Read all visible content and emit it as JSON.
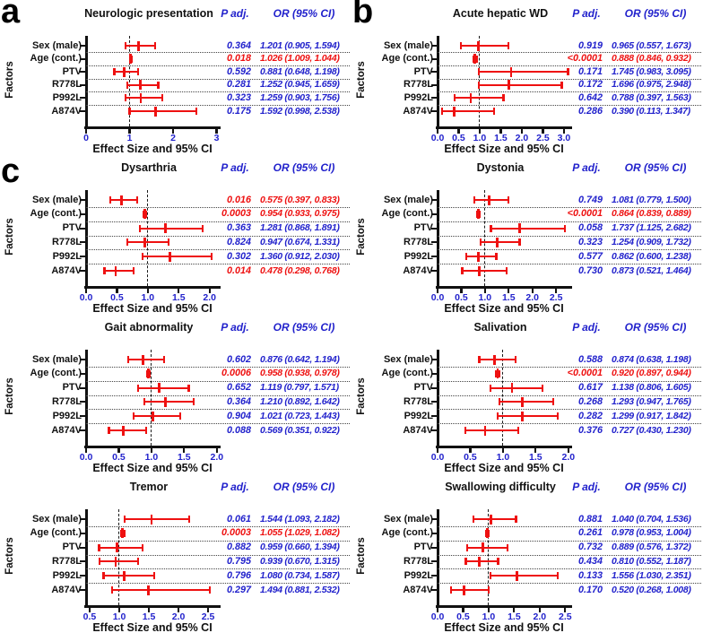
{
  "figure_labels": {
    "p_header": "P adj.",
    "or_header": "OR (95% CI)",
    "x_axis_label": "Effect Size and 95% CI",
    "y_axis_label": "Factors"
  },
  "colors": {
    "significant_red": "#ee1111",
    "text_blue": "#2222cc",
    "axis_black": "#111111"
  },
  "chart_data": [
    {
      "type": "forest",
      "panel_letter": "a",
      "title": "Neurologic presentation",
      "xlabel": "Effect Size and 95% CI",
      "ylabel": "Factors",
      "xlim": [
        0,
        3.05
      ],
      "ref_line": 1.0,
      "x_ticks": [
        0,
        1,
        2,
        3
      ],
      "x_tick_labels": [
        "0",
        "1",
        "2",
        "3"
      ],
      "rows": [
        {
          "factor": "Sex (male)",
          "p_adj": "0.364",
          "or": 1.201,
          "ci": [
            0.905,
            1.594
          ],
          "or_label": "1.201 (0.905, 1.594)",
          "significant": false
        },
        {
          "factor": "Age (cont.)",
          "p_adj": "0.018",
          "or": 1.026,
          "ci": [
            1.009,
            1.044
          ],
          "or_label": "1.026 (1.009, 1.044)",
          "significant": true
        },
        {
          "factor": "PTV",
          "p_adj": "0.592",
          "or": 0.881,
          "ci": [
            0.648,
            1.198
          ],
          "or_label": "0.881 (0.648, 1.198)",
          "significant": false
        },
        {
          "factor": "R778L",
          "p_adj": "0.281",
          "or": 1.252,
          "ci": [
            0.945,
            1.659
          ],
          "or_label": "1.252 (0.945, 1.659)",
          "significant": false
        },
        {
          "factor": "P992L",
          "p_adj": "0.323",
          "or": 1.259,
          "ci": [
            0.903,
            1.756
          ],
          "or_label": "1.259 (0.903, 1.756)",
          "significant": false
        },
        {
          "factor": "A874V",
          "p_adj": "0.175",
          "or": 1.592,
          "ci": [
            0.998,
            2.538
          ],
          "or_label": "1.592 (0.998, 2.538)",
          "significant": false
        }
      ]
    },
    {
      "type": "forest",
      "panel_letter": "b",
      "title": "Acute hepatic WD",
      "xlabel": "Effect Size and 95% CI",
      "ylabel": "Factors",
      "xlim": [
        0,
        3.15
      ],
      "ref_line": 1.0,
      "x_ticks": [
        0,
        0.5,
        1,
        1.5,
        2,
        2.5,
        3
      ],
      "x_tick_labels": [
        "0.0",
        "0.5",
        "1.0",
        "1.5",
        "2.0",
        "2.5",
        "3.0"
      ],
      "rows": [
        {
          "factor": "Sex (male)",
          "p_adj": "0.919",
          "or": 0.965,
          "ci": [
            0.557,
            1.673
          ],
          "or_label": "0.965 (0.557, 1.673)",
          "significant": false
        },
        {
          "factor": "Age (cont.)",
          "p_adj": "<0.0001",
          "or": 0.888,
          "ci": [
            0.846,
            0.932
          ],
          "or_label": "0.888 (0.846, 0.932)",
          "significant": true
        },
        {
          "factor": "PTV",
          "p_adj": "0.171",
          "or": 1.745,
          "ci": [
            0.983,
            3.095
          ],
          "or_label": "1.745 (0.983, 3.095)",
          "significant": false
        },
        {
          "factor": "R778L",
          "p_adj": "0.172",
          "or": 1.696,
          "ci": [
            0.975,
            2.948
          ],
          "or_label": "1.696 (0.975, 2.948)",
          "significant": false
        },
        {
          "factor": "P992L",
          "p_adj": "0.642",
          "or": 0.788,
          "ci": [
            0.397,
            1.563
          ],
          "or_label": "0.788 (0.397, 1.563)",
          "significant": false
        },
        {
          "factor": "A874V",
          "p_adj": "0.286",
          "or": 0.39,
          "ci": [
            0.113,
            1.347
          ],
          "or_label": "0.390 (0.113, 1.347)",
          "significant": false
        }
      ]
    },
    {
      "type": "forest",
      "panel_letter": "c",
      "title": "Dysarthria",
      "xlabel": "Effect Size and 95% CI",
      "ylabel": "Factors",
      "xlim": [
        0,
        2.15
      ],
      "ref_line": 1.0,
      "x_ticks": [
        0,
        0.5,
        1,
        1.5,
        2
      ],
      "x_tick_labels": [
        "0.0",
        "0.5",
        "1.0",
        "1.5",
        "2.0"
      ],
      "rows": [
        {
          "factor": "Sex (male)",
          "p_adj": "0.016",
          "or": 0.575,
          "ci": [
            0.397,
            0.833
          ],
          "or_label": "0.575 (0.397, 0.833)",
          "significant": true
        },
        {
          "factor": "Age (cont.)",
          "p_adj": "0.0003",
          "or": 0.954,
          "ci": [
            0.933,
            0.975
          ],
          "or_label": "0.954 (0.933, 0.975)",
          "significant": true
        },
        {
          "factor": "PTV",
          "p_adj": "0.363",
          "or": 1.281,
          "ci": [
            0.868,
            1.891
          ],
          "or_label": "1.281 (0.868, 1.891)",
          "significant": false
        },
        {
          "factor": "R778L",
          "p_adj": "0.824",
          "or": 0.947,
          "ci": [
            0.674,
            1.331
          ],
          "or_label": "0.947 (0.674, 1.331)",
          "significant": false
        },
        {
          "factor": "P992L",
          "p_adj": "0.302",
          "or": 1.36,
          "ci": [
            0.912,
            2.03
          ],
          "or_label": "1.360 (0.912, 2.030)",
          "significant": false
        },
        {
          "factor": "A874V",
          "p_adj": "0.014",
          "or": 0.478,
          "ci": [
            0.298,
            0.768
          ],
          "or_label": "0.478 (0.298, 0.768)",
          "significant": true
        }
      ]
    },
    {
      "type": "forest",
      "panel_letter": "",
      "title": "Dystonia",
      "xlabel": "Effect Size and 95% CI",
      "ylabel": "Factors",
      "xlim": [
        0,
        2.8
      ],
      "ref_line": 1.0,
      "x_ticks": [
        0,
        0.5,
        1,
        1.5,
        2,
        2.5
      ],
      "x_tick_labels": [
        "0.0",
        "0.5",
        "1.0",
        "1.5",
        "2.0",
        "2.5"
      ],
      "rows": [
        {
          "factor": "Sex (male)",
          "p_adj": "0.749",
          "or": 1.081,
          "ci": [
            0.779,
            1.5
          ],
          "or_label": "1.081 (0.779, 1.500)",
          "significant": false
        },
        {
          "factor": "Age (cont.)",
          "p_adj": "<0.0001",
          "or": 0.864,
          "ci": [
            0.839,
            0.889
          ],
          "or_label": "0.864 (0.839, 0.889)",
          "significant": true
        },
        {
          "factor": "PTV",
          "p_adj": "0.058",
          "or": 1.737,
          "ci": [
            1.125,
            2.682
          ],
          "or_label": "1.737 (1.125, 2.682)",
          "significant": false
        },
        {
          "factor": "R778L",
          "p_adj": "0.323",
          "or": 1.254,
          "ci": [
            0.909,
            1.732
          ],
          "or_label": "1.254 (0.909, 1.732)",
          "significant": false
        },
        {
          "factor": "P992L",
          "p_adj": "0.577",
          "or": 0.862,
          "ci": [
            0.6,
            1.238
          ],
          "or_label": "0.862 (0.600, 1.238)",
          "significant": false
        },
        {
          "factor": "A874V",
          "p_adj": "0.730",
          "or": 0.873,
          "ci": [
            0.521,
            1.464
          ],
          "or_label": "0.873 (0.521, 1.464)",
          "significant": false
        }
      ]
    },
    {
      "type": "forest",
      "panel_letter": "",
      "title": "Gait abnormality",
      "xlabel": "Effect Size and 95% CI",
      "ylabel": "Factors",
      "xlim": [
        0,
        2.03
      ],
      "ref_line": 1.0,
      "x_ticks": [
        0,
        0.5,
        1,
        1.5,
        2
      ],
      "x_tick_labels": [
        "0.0",
        "0.5",
        "1.0",
        "1.5",
        "2.0"
      ],
      "rows": [
        {
          "factor": "Sex (male)",
          "p_adj": "0.602",
          "or": 0.876,
          "ci": [
            0.642,
            1.194
          ],
          "or_label": "0.876 (0.642, 1.194)",
          "significant": false
        },
        {
          "factor": "Age (cont.)",
          "p_adj": "0.0006",
          "or": 0.958,
          "ci": [
            0.938,
            0.978
          ],
          "or_label": "0.958 (0.938, 0.978)",
          "significant": true
        },
        {
          "factor": "PTV",
          "p_adj": "0.652",
          "or": 1.119,
          "ci": [
            0.797,
            1.571
          ],
          "or_label": "1.119 (0.797, 1.571)",
          "significant": false
        },
        {
          "factor": "R778L",
          "p_adj": "0.364",
          "or": 1.21,
          "ci": [
            0.892,
            1.642
          ],
          "or_label": "1.210 (0.892, 1.642)",
          "significant": false
        },
        {
          "factor": "P992L",
          "p_adj": "0.904",
          "or": 1.021,
          "ci": [
            0.723,
            1.443
          ],
          "or_label": "1.021 (0.723, 1.443)",
          "significant": false
        },
        {
          "factor": "A874V",
          "p_adj": "0.088",
          "or": 0.569,
          "ci": [
            0.351,
            0.922
          ],
          "or_label": "0.569 (0.351, 0.922)",
          "significant": false
        }
      ]
    },
    {
      "type": "forest",
      "panel_letter": "",
      "title": "Salivation",
      "xlabel": "Effect Size and 95% CI",
      "ylabel": "Factors",
      "xlim": [
        0,
        2.03
      ],
      "ref_line": 1.0,
      "x_ticks": [
        0,
        0.5,
        1,
        1.5,
        2
      ],
      "x_tick_labels": [
        "0.0",
        "0.5",
        "1.0",
        "1.5",
        "2.0"
      ],
      "rows": [
        {
          "factor": "Sex (male)",
          "p_adj": "0.588",
          "or": 0.874,
          "ci": [
            0.638,
            1.198
          ],
          "or_label": "0.874 (0.638, 1.198)",
          "significant": false
        },
        {
          "factor": "Age (cont.)",
          "p_adj": "<0.0001",
          "or": 0.92,
          "ci": [
            0.897,
            0.944
          ],
          "or_label": "0.920 (0.897, 0.944)",
          "significant": true
        },
        {
          "factor": "PTV",
          "p_adj": "0.617",
          "or": 1.138,
          "ci": [
            0.806,
            1.605
          ],
          "or_label": "1.138 (0.806, 1.605)",
          "significant": false
        },
        {
          "factor": "R778L",
          "p_adj": "0.268",
          "or": 1.293,
          "ci": [
            0.947,
            1.765
          ],
          "or_label": "1.293 (0.947, 1.765)",
          "significant": false
        },
        {
          "factor": "P992L",
          "p_adj": "0.282",
          "or": 1.299,
          "ci": [
            0.917,
            1.842
          ],
          "or_label": "1.299 (0.917, 1.842)",
          "significant": false
        },
        {
          "factor": "A874V",
          "p_adj": "0.376",
          "or": 0.727,
          "ci": [
            0.43,
            1.23
          ],
          "or_label": "0.727 (0.430, 1.230)",
          "significant": false
        }
      ]
    },
    {
      "type": "forest",
      "panel_letter": "",
      "title": "Tremor",
      "xlabel": "Effect Size and 95% CI",
      "ylabel": "Factors",
      "xlim": [
        0.44,
        2.68
      ],
      "ref_line": 1.0,
      "x_ticks": [
        0.5,
        1,
        1.5,
        2,
        2.5
      ],
      "x_tick_labels": [
        "0.5",
        "1.0",
        "1.5",
        "2.0",
        "2.5"
      ],
      "rows": [
        {
          "factor": "Sex (male)",
          "p_adj": "0.061",
          "or": 1.544,
          "ci": [
            1.093,
            2.182
          ],
          "or_label": "1.544 (1.093, 2.182)",
          "significant": false
        },
        {
          "factor": "Age (cont.)",
          "p_adj": "0.0003",
          "or": 1.055,
          "ci": [
            1.029,
            1.082
          ],
          "or_label": "1.055 (1.029, 1.082)",
          "significant": true
        },
        {
          "factor": "PTV",
          "p_adj": "0.882",
          "or": 0.959,
          "ci": [
            0.66,
            1.394
          ],
          "or_label": "0.959 (0.660, 1.394)",
          "significant": false
        },
        {
          "factor": "R778L",
          "p_adj": "0.795",
          "or": 0.939,
          "ci": [
            0.67,
            1.315
          ],
          "or_label": "0.939 (0.670, 1.315)",
          "significant": false
        },
        {
          "factor": "P992L",
          "p_adj": "0.796",
          "or": 1.08,
          "ci": [
            0.734,
            1.587
          ],
          "or_label": "1.080 (0.734, 1.587)",
          "significant": false
        },
        {
          "factor": "A874V",
          "p_adj": "0.297",
          "or": 1.494,
          "ci": [
            0.881,
            2.532
          ],
          "or_label": "1.494 (0.881, 2.532)",
          "significant": false
        }
      ]
    },
    {
      "type": "forest",
      "panel_letter": "",
      "title": "Swallowing difficulty",
      "xlabel": "Effect Size and 95% CI",
      "ylabel": "Factors",
      "xlim": [
        0,
        2.6
      ],
      "ref_line": 1.0,
      "x_ticks": [
        0,
        0.5,
        1,
        1.5,
        2,
        2.5
      ],
      "x_tick_labels": [
        "0.0",
        "0.5",
        "1.0",
        "1.5",
        "2.0",
        "2.5"
      ],
      "rows": [
        {
          "factor": "Sex (male)",
          "p_adj": "0.881",
          "or": 1.04,
          "ci": [
            0.704,
            1.536
          ],
          "or_label": "1.040 (0.704, 1.536)",
          "significant": false
        },
        {
          "factor": "Age (cont.)",
          "p_adj": "0.261",
          "or": 0.978,
          "ci": [
            0.953,
            1.004
          ],
          "or_label": "0.978 (0.953, 1.004)",
          "significant": false
        },
        {
          "factor": "PTV",
          "p_adj": "0.732",
          "or": 0.889,
          "ci": [
            0.576,
            1.372
          ],
          "or_label": "0.889 (0.576, 1.372)",
          "significant": false
        },
        {
          "factor": "R778L",
          "p_adj": "0.434",
          "or": 0.81,
          "ci": [
            0.552,
            1.187
          ],
          "or_label": "0.810 (0.552, 1.187)",
          "significant": false
        },
        {
          "factor": "P992L",
          "p_adj": "0.133",
          "or": 1.556,
          "ci": [
            1.03,
            2.351
          ],
          "or_label": "1.556 (1.030, 2.351)",
          "significant": false
        },
        {
          "factor": "A874V",
          "p_adj": "0.170",
          "or": 0.52,
          "ci": [
            0.268,
            1.008
          ],
          "or_label": "0.520 (0.268, 1.008)",
          "significant": false
        }
      ]
    }
  ]
}
